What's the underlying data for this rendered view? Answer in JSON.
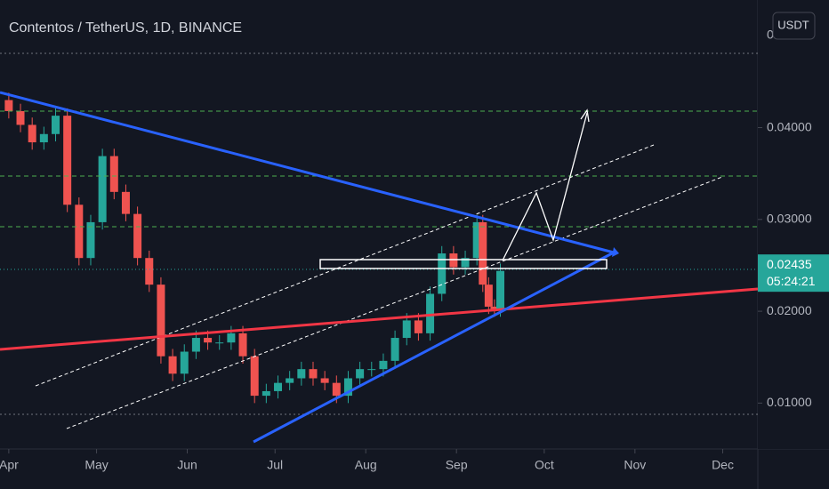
{
  "chart_data": {
    "type": "candlestick",
    "title": "Contentos / TetherUS, 1D, BINANCE",
    "currency": "USDT",
    "y_axis_top_label": "0",
    "x": [
      0,
      4,
      8,
      12,
      16,
      20,
      24,
      28,
      32,
      36,
      40,
      44,
      48,
      52,
      56,
      60,
      64,
      68,
      72,
      76,
      80,
      84,
      88,
      92,
      96,
      100,
      104,
      108,
      112,
      116,
      120,
      124,
      128,
      132,
      136,
      140,
      144,
      148,
      152,
      156,
      160,
      162,
      164,
      166,
      168
    ],
    "open": [
      0.043,
      0.0418,
      0.0403,
      0.0384,
      0.0393,
      0.0413,
      0.0316,
      0.0258,
      0.0297,
      0.0369,
      0.033,
      0.0306,
      0.0258,
      0.0229,
      0.0151,
      0.0132,
      0.0156,
      0.0171,
      0.0166,
      0.0166,
      0.0176,
      0.0151,
      0.0108,
      0.0113,
      0.0122,
      0.0127,
      0.0137,
      0.0127,
      0.0122,
      0.0108,
      0.0127,
      0.0137,
      0.0137,
      0.0146,
      0.0171,
      0.019,
      0.0176,
      0.0219,
      0.0263,
      0.0248,
      0.0258,
      0.0297,
      0.0229,
      0.0205,
      0.0202
    ],
    "high": [
      0.0438,
      0.0426,
      0.0411,
      0.0401,
      0.0421,
      0.0421,
      0.0324,
      0.0305,
      0.0377,
      0.0377,
      0.0338,
      0.0314,
      0.0266,
      0.0237,
      0.0159,
      0.0164,
      0.0179,
      0.0179,
      0.0174,
      0.0184,
      0.0184,
      0.0159,
      0.0121,
      0.013,
      0.0135,
      0.0145,
      0.0145,
      0.0135,
      0.013,
      0.0135,
      0.0145,
      0.0145,
      0.0154,
      0.0179,
      0.0198,
      0.0198,
      0.0227,
      0.0271,
      0.0271,
      0.0266,
      0.0305,
      0.0305,
      0.0237,
      0.0213,
      0.0252
    ],
    "low": [
      0.041,
      0.0395,
      0.0376,
      0.0376,
      0.0385,
      0.0308,
      0.025,
      0.025,
      0.0289,
      0.0322,
      0.0298,
      0.025,
      0.0221,
      0.0143,
      0.0124,
      0.0124,
      0.0148,
      0.0158,
      0.0158,
      0.0158,
      0.0143,
      0.01,
      0.01,
      0.0105,
      0.0114,
      0.0119,
      0.0119,
      0.0114,
      0.01,
      0.01,
      0.0119,
      0.0129,
      0.0129,
      0.0138,
      0.0163,
      0.0168,
      0.0168,
      0.0211,
      0.024,
      0.024,
      0.025,
      0.0221,
      0.0197,
      0.0194,
      0.0194
    ],
    "close": [
      0.0418,
      0.0403,
      0.0384,
      0.0393,
      0.0413,
      0.0316,
      0.0258,
      0.0297,
      0.0369,
      0.033,
      0.0306,
      0.0258,
      0.0229,
      0.0151,
      0.0132,
      0.0156,
      0.0171,
      0.0166,
      0.0166,
      0.0176,
      0.0151,
      0.0108,
      0.0113,
      0.0122,
      0.0127,
      0.0137,
      0.0127,
      0.0122,
      0.0108,
      0.0127,
      0.0137,
      0.0137,
      0.0146,
      0.0171,
      0.019,
      0.0176,
      0.0219,
      0.0263,
      0.0248,
      0.0258,
      0.0297,
      0.0229,
      0.0205,
      0.0202,
      0.0244
    ],
    "up_color": "#26a69a",
    "down_color": "#ef5350",
    "xlim": [
      -3,
      256
    ],
    "xticks": [
      {
        "value": 0,
        "label": "Apr"
      },
      {
        "value": 30,
        "label": "May"
      },
      {
        "value": 61,
        "label": "Jun"
      },
      {
        "value": 91,
        "label": "Jul"
      },
      {
        "value": 122,
        "label": "Aug"
      },
      {
        "value": 153,
        "label": "Sep"
      },
      {
        "value": 183,
        "label": "Oct"
      },
      {
        "value": 214,
        "label": "Nov"
      },
      {
        "value": 244,
        "label": "Dec"
      }
    ],
    "ylim": [
      0.005,
      0.0539
    ],
    "yticks": [
      {
        "value": 0.01,
        "label": "0.01000"
      },
      {
        "value": 0.02,
        "label": "0.02000"
      },
      {
        "value": 0.03,
        "label": "0.03000"
      },
      {
        "value": 0.04,
        "label": "0.04000"
      }
    ],
    "last_price": 0.02435,
    "countdown": "05:24:21"
  }
}
